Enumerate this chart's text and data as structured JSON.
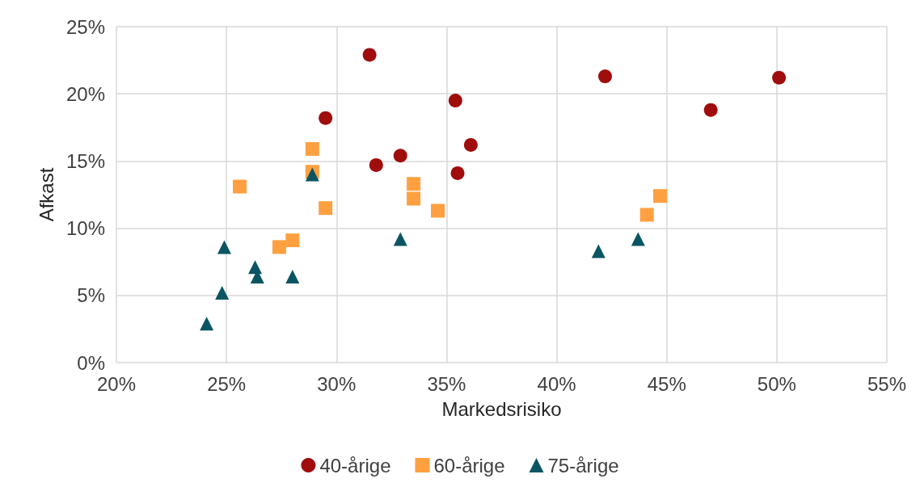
{
  "chart_data": {
    "type": "scatter",
    "xlabel": "Markedsrisiko",
    "ylabel": "Afkast",
    "xlim": [
      20,
      55
    ],
    "xticks": [
      {
        "value": 20,
        "label": "20%"
      },
      {
        "value": 25,
        "label": "25%"
      },
      {
        "value": 30,
        "label": "30%"
      },
      {
        "value": 35,
        "label": "35%"
      },
      {
        "value": 40,
        "label": "40%"
      },
      {
        "value": 45,
        "label": "45%"
      },
      {
        "value": 50,
        "label": "50%"
      },
      {
        "value": 55,
        "label": "55%"
      }
    ],
    "ylim": [
      0,
      25
    ],
    "yticks": [
      {
        "value": 0,
        "label": "0%"
      },
      {
        "value": 5,
        "label": "5%"
      },
      {
        "value": 10,
        "label": "10%"
      },
      {
        "value": 15,
        "label": "15%"
      },
      {
        "value": 20,
        "label": "20%"
      },
      {
        "value": 25,
        "label": "25%"
      }
    ],
    "grid": true,
    "legend": "bottom",
    "series": [
      {
        "name": "40-årige",
        "color": "#a00d0d",
        "marker": "circle",
        "x": [
          31.5,
          42.2,
          50.1,
          47.0,
          35.4,
          29.5,
          36.1,
          32.9,
          31.8,
          35.5
        ],
        "values": [
          22.9,
          21.3,
          21.2,
          18.8,
          19.5,
          18.2,
          16.2,
          15.4,
          14.7,
          14.1
        ]
      },
      {
        "name": "60-årige",
        "color": "#ffa040",
        "marker": "square",
        "x": [
          25.6,
          28.9,
          28.9,
          29.5,
          33.5,
          33.5,
          34.6,
          27.4,
          28.0,
          44.1,
          44.7
        ],
        "values": [
          13.1,
          15.9,
          14.2,
          11.5,
          13.3,
          12.2,
          11.3,
          8.6,
          9.1,
          11.0,
          12.4
        ]
      },
      {
        "name": "75-årige",
        "color": "#0b5563",
        "marker": "triangle",
        "x": [
          28.9,
          24.9,
          26.3,
          26.4,
          28.0,
          24.8,
          24.1,
          32.9,
          41.9,
          43.7
        ],
        "values": [
          14.0,
          8.6,
          7.1,
          6.4,
          6.4,
          5.2,
          2.9,
          9.2,
          8.3,
          9.2
        ]
      }
    ]
  }
}
